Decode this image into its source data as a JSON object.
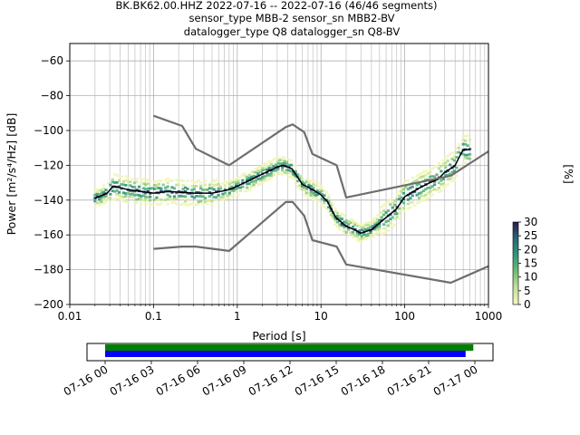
{
  "chart_data": {
    "type": "line",
    "title_lines": [
      "BK.BK62.00.HHZ   2022-07-16 -- 2022-07-16  (46/46 segments)",
      "sensor_type MBB-2 sensor_sn MBB2-BV",
      "datalogger_type Q8 datalogger_sn Q8-BV"
    ],
    "xlabel": "Period [s]",
    "ylabel": "Power [m²/s⁴/Hz] [dB]",
    "x_scale": "log",
    "xlim": [
      0.01,
      1000
    ],
    "ylim": [
      -200,
      -50
    ],
    "x_ticks": [
      0.01,
      0.1,
      1,
      10,
      100,
      1000
    ],
    "x_tick_labels": [
      "0.01",
      "0.1",
      "1",
      "10",
      "100",
      "1000"
    ],
    "y_ticks": [
      -200,
      -180,
      -160,
      -140,
      -120,
      -100,
      -80,
      -60
    ],
    "y_tick_labels": [
      "−200",
      "−180",
      "−160",
      "−140",
      "−120",
      "−100",
      "−80",
      "−60"
    ],
    "grid": true,
    "colorbar": {
      "label": "[%]",
      "min": 0,
      "max": 30,
      "ticks": [
        0,
        5,
        10,
        15,
        20,
        25,
        30
      ],
      "tick_labels": [
        "0",
        "5",
        "10",
        "15",
        "20",
        "25",
        "30"
      ]
    },
    "series": [
      {
        "role": "mode",
        "color": "#000000",
        "x": [
          0.02,
          0.028,
          0.033,
          0.05,
          0.1,
          0.15,
          0.3,
          0.5,
          0.8,
          1.0,
          1.5,
          2.0,
          3.0,
          3.5,
          4.5,
          6.0,
          8.0,
          10,
          12,
          15,
          20,
          25,
          30,
          40,
          60,
          80,
          100,
          150,
          200,
          250,
          300,
          350,
          400,
          450,
          500,
          600
        ],
        "y": [
          -139,
          -136,
          -132,
          -134,
          -136,
          -135,
          -136,
          -136,
          -134,
          -132,
          -128,
          -125,
          -121,
          -120,
          -122,
          -131,
          -134,
          -137,
          -141,
          -150,
          -155,
          -157,
          -159,
          -157,
          -150,
          -145,
          -138,
          -133,
          -130,
          -128,
          -124,
          -122,
          -120,
          -115,
          -111,
          -111
        ]
      },
      {
        "role": "NHNM",
        "color": "#6e6e6e",
        "x": [
          0.1,
          0.22,
          0.32,
          0.8,
          3.8,
          4.6,
          6.3,
          7.9,
          15.4,
          20,
          354.8,
          1000
        ],
        "y": [
          -168,
          -166.7,
          -166.7,
          -169.2,
          -141.1,
          -141.1,
          -149,
          -163,
          -166.7,
          -177,
          -187.5,
          -178
        ]
      },
      {
        "role": "NLNM",
        "color": "#6e6e6e",
        "x": [
          0.1,
          0.22,
          0.32,
          0.8,
          3.8,
          4.6,
          6.3,
          7.9,
          15.4,
          20,
          354.8,
          1000
        ],
        "y": [
          -91.5,
          -97.4,
          -110.5,
          -120,
          -98,
          -96.5,
          -101,
          -113.5,
          -120,
          -138.5,
          -126,
          -112
        ]
      }
    ]
  },
  "time_axis": {
    "tick_labels": [
      "07-16 00",
      "07-16 03",
      "07-16 06",
      "07-16 09",
      "07-16 12",
      "07-16 15",
      "07-16 18",
      "07-16 21",
      "07-17 00"
    ],
    "bars": [
      {
        "color": "#008000",
        "start_hour": 0,
        "end_hour": 23.9
      },
      {
        "color": "#0000ff",
        "start_hour": 0,
        "end_hour": 23.4
      }
    ]
  }
}
